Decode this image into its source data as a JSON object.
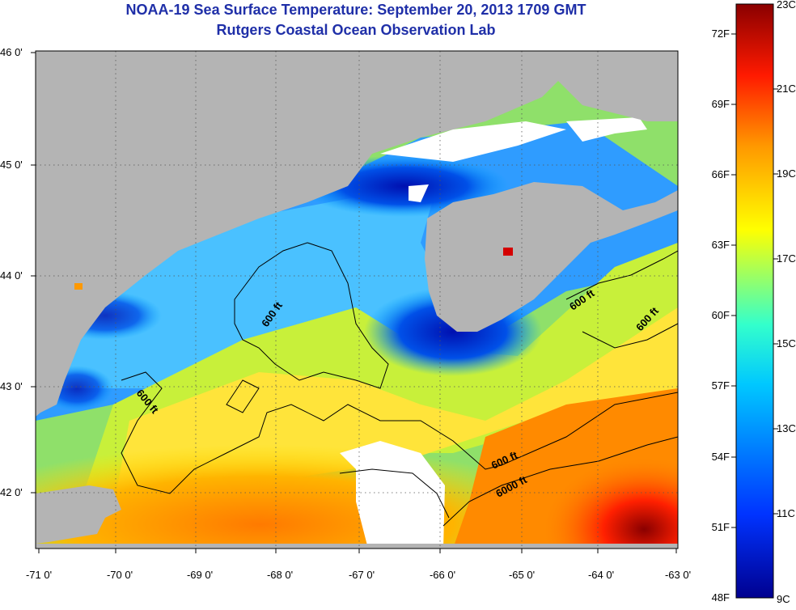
{
  "header": {
    "title": "NOAA-19 Sea Surface Temperature:  September 20, 2013 1709 GMT",
    "subtitle": "Rutgers Coastal Ocean Observation Lab"
  },
  "map": {
    "lat_labels": [
      "46 0'",
      "45 0'",
      "44 0'",
      "43 0'",
      "42 0'"
    ],
    "lon_labels": [
      "-71 0'",
      "-70 0'",
      "-69 0'",
      "-68 0'",
      "-67 0'",
      "-66 0'",
      "-65 0'",
      "-64 0'",
      "-63 0'"
    ],
    "lat_range": [
      41.5,
      46.0
    ],
    "lon_range": [
      -71.0,
      -63.0
    ],
    "contours": [
      {
        "label": "600 ft"
      },
      {
        "label": "600 ft"
      },
      {
        "label": "600 ft"
      },
      {
        "label": "600 ft"
      },
      {
        "label": "6000 ft"
      },
      {
        "label": "600 ft"
      }
    ],
    "colors": {
      "land": "#b4b4b4",
      "cloud": "#ffffff",
      "graticule": "#555555"
    }
  },
  "colorbar": {
    "fahrenheit_labels": [
      "72F",
      "69F",
      "66F",
      "63F",
      "60F",
      "57F",
      "54F",
      "51F",
      "48F"
    ],
    "celsius_labels": [
      "23C",
      "21C",
      "19C",
      "17C",
      "15C",
      "13C",
      "11C",
      "9C"
    ],
    "min_c": 9,
    "max_c": 23,
    "stops": [
      "#00008f",
      "#0033ff",
      "#00c8ff",
      "#33ffcc",
      "#ffff00",
      "#ff9900",
      "#ff1a00",
      "#8a0000"
    ]
  }
}
